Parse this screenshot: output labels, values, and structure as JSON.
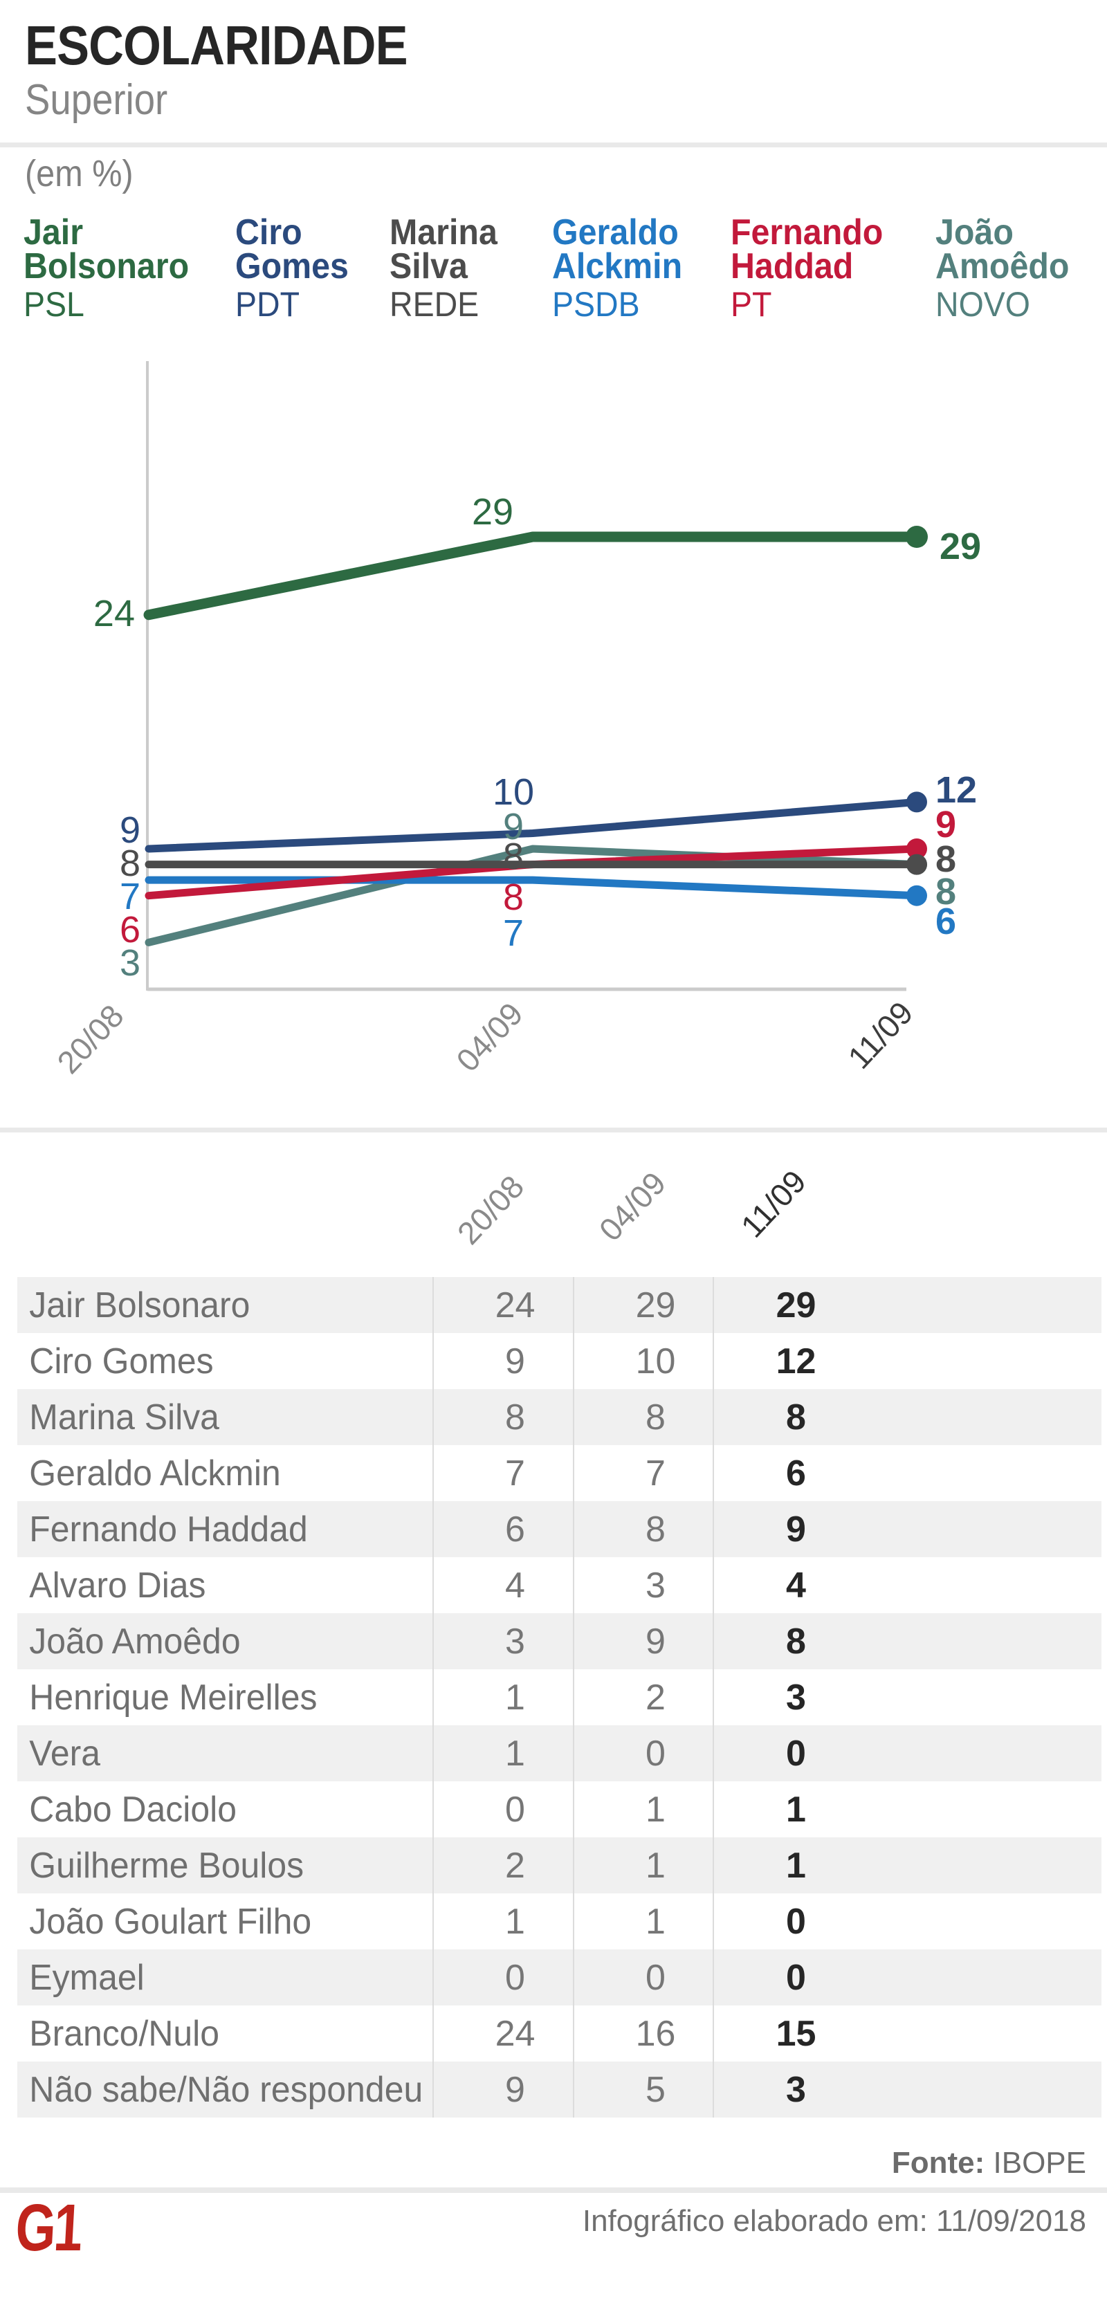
{
  "header": {
    "title": "ESCOLARIDADE",
    "subtitle": "Superior",
    "unit_label": "(em %)"
  },
  "chart_data": {
    "type": "line",
    "title": "ESCOLARIDADE - Superior (em %)",
    "x": [
      "20/08",
      "04/09",
      "11/09"
    ],
    "ylim": [
      0,
      39
    ],
    "grid": false,
    "legend_position": "top",
    "series": [
      {
        "name": "Jair Bolsonaro",
        "name_lines": [
          "Jair",
          "Bolsonaro"
        ],
        "party": "PSL",
        "color": "#2D6A42",
        "values": [
          24,
          29,
          29
        ]
      },
      {
        "name": "Ciro Gomes",
        "name_lines": [
          "Ciro",
          "Gomes"
        ],
        "party": "PDT",
        "color": "#2B4A7D",
        "values": [
          9,
          10,
          12
        ]
      },
      {
        "name": "Marina Silva",
        "name_lines": [
          "Marina",
          "Silva"
        ],
        "party": "REDE",
        "color": "#4C4C4C",
        "values": [
          8,
          8,
          8
        ]
      },
      {
        "name": "Geraldo Alckmin",
        "name_lines": [
          "Geraldo",
          "Alckmin"
        ],
        "party": "PSDB",
        "color": "#2278C3",
        "values": [
          7,
          7,
          6
        ]
      },
      {
        "name": "Fernando Haddad",
        "name_lines": [
          "Fernando",
          "Haddad"
        ],
        "party": "PT",
        "color": "#C2193B",
        "values": [
          6,
          8,
          9
        ]
      },
      {
        "name": "João Amoêdo",
        "name_lines": [
          "João",
          "Amoêdo"
        ],
        "party": "NOVO",
        "color": "#53807D",
        "values": [
          3,
          9,
          8
        ]
      }
    ]
  },
  "table": {
    "columns": [
      "20/08",
      "04/09",
      "11/09"
    ],
    "rows": [
      {
        "name": "Jair Bolsonaro",
        "values": [
          24,
          29,
          29
        ]
      },
      {
        "name": "Ciro Gomes",
        "values": [
          9,
          10,
          12
        ]
      },
      {
        "name": "Marina Silva",
        "values": [
          8,
          8,
          8
        ]
      },
      {
        "name": "Geraldo Alckmin",
        "values": [
          7,
          7,
          6
        ]
      },
      {
        "name": "Fernando Haddad",
        "values": [
          6,
          8,
          9
        ]
      },
      {
        "name": "Alvaro Dias",
        "values": [
          4,
          3,
          4
        ]
      },
      {
        "name": "João Amoêdo",
        "values": [
          3,
          9,
          8
        ]
      },
      {
        "name": "Henrique Meirelles",
        "values": [
          1,
          2,
          3
        ]
      },
      {
        "name": "Vera",
        "values": [
          1,
          0,
          0
        ]
      },
      {
        "name": "Cabo Daciolo",
        "values": [
          0,
          1,
          1
        ]
      },
      {
        "name": "Guilherme Boulos",
        "values": [
          2,
          1,
          1
        ]
      },
      {
        "name": "João Goulart Filho",
        "values": [
          1,
          1,
          0
        ]
      },
      {
        "name": "Eymael",
        "values": [
          0,
          0,
          0
        ]
      },
      {
        "name": "Branco/Nulo",
        "values": [
          24,
          16,
          15
        ]
      },
      {
        "name": "Não sabe/Não respondeu",
        "values": [
          9,
          5,
          3
        ]
      }
    ]
  },
  "footer": {
    "source_label": "Fonte:",
    "source": "IBOPE",
    "credit": "Infográfico elaborado em: 11/09/2018",
    "logo_text": "G1",
    "logo_color": "#c0241c"
  },
  "colors": {
    "title": "#262626",
    "muted_text": "#858585",
    "axis": "#cbcbcb",
    "divider": "#e9e9e9",
    "row_alt_bg": "#f0f0f0",
    "axis_label": "#8a8a8a",
    "axis_label_dark": "#3c3c3c"
  }
}
